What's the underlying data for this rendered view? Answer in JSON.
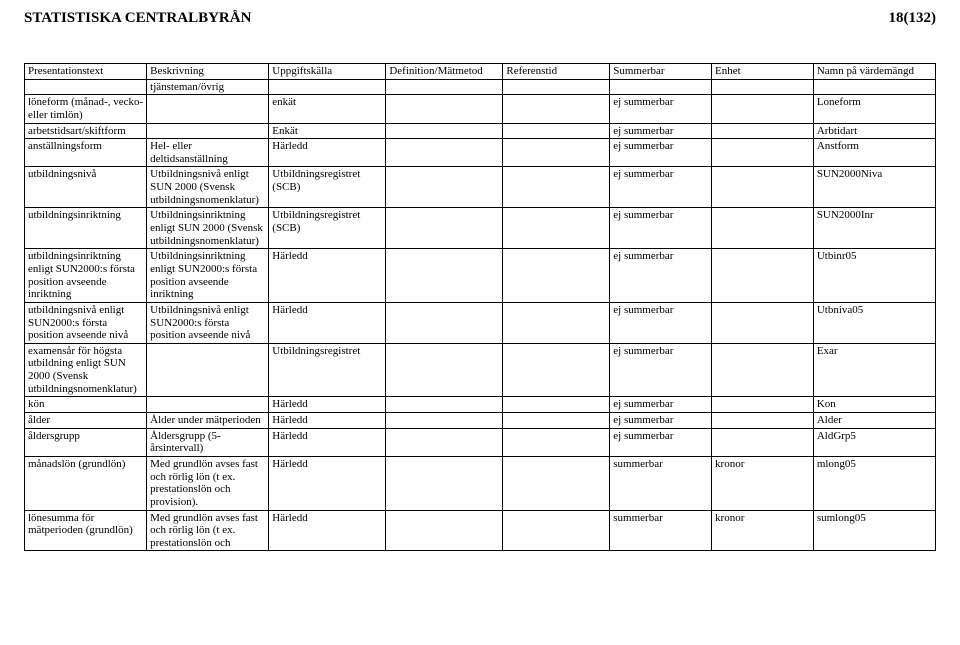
{
  "header": {
    "org": "STATISTISKA CENTRALBYRÅN",
    "page_no": "18(132)"
  },
  "table": {
    "columns": [
      "Presentationstext",
      "Beskrivning",
      "Uppgiftskälla",
      "Definition/Mätmetod",
      "Referenstid",
      "Summerbar",
      "Enhet",
      "Namn på värdemängd"
    ],
    "subhead": {
      "c1": "tjänsteman/övrig"
    },
    "rows": [
      {
        "c0": "löneform (månad-, vecko- eller timlön)",
        "c1": "",
        "c2": "enkät",
        "c3": "",
        "c4": "",
        "c5": "ej summerbar",
        "c6": "",
        "c7": "Loneform"
      },
      {
        "c0": "arbetstidsart/skiftform",
        "c1": "",
        "c2": "Enkät",
        "c3": "",
        "c4": "",
        "c5": "ej summerbar",
        "c6": "",
        "c7": "Arbtidart"
      },
      {
        "c0": "anställningsform",
        "c1": "Hel- eller deltidsanställning",
        "c2": "Härledd",
        "c3": "",
        "c4": "",
        "c5": "ej summerbar",
        "c6": "",
        "c7": "Anstform"
      },
      {
        "c0": "utbildningsnivå",
        "c1": "Utbildningsnivå enligt SUN 2000 (Svensk utbildningsnomenklatur)",
        "c2": "Utbildningsregistret (SCB)",
        "c3": "",
        "c4": "",
        "c5": "ej summerbar",
        "c6": "",
        "c7": "SUN2000Niva"
      },
      {
        "c0": "utbildningsinriktning",
        "c1": "Utbildningsinriktning enligt SUN 2000 (Svensk utbildningsnomenklatur)",
        "c2": "Utbildningsregistret (SCB)",
        "c3": "",
        "c4": "",
        "c5": "ej summerbar",
        "c6": "",
        "c7": "SUN2000Inr"
      },
      {
        "c0": "utbildningsinriktning enligt SUN2000:s första position avseende inriktning",
        "c1": "Utbildningsinriktning enligt SUN2000:s första position avseende inriktning",
        "c2": "Härledd",
        "c3": "",
        "c4": "",
        "c5": "ej summerbar",
        "c6": "",
        "c7": "Utbinr05"
      },
      {
        "c0": "utbildningsnivå enligt SUN2000:s första position avseende nivå",
        "c1": "Utbildningsnivå enligt SUN2000:s första position avseende nivå",
        "c2": "Härledd",
        "c3": "",
        "c4": "",
        "c5": "ej summerbar",
        "c6": "",
        "c7": "Utbniva05"
      },
      {
        "c0": "examensår för högsta utbildning enligt SUN 2000 (Svensk utbildningsnomenklatur)",
        "c1": "",
        "c2": "Utbildningsregistret",
        "c3": "",
        "c4": "",
        "c5": "ej summerbar",
        "c6": "",
        "c7": "Exar"
      },
      {
        "c0": "kön",
        "c1": "",
        "c2": "Härledd",
        "c3": "",
        "c4": "",
        "c5": "ej summerbar",
        "c6": "",
        "c7": "Kon"
      },
      {
        "c0": "ålder",
        "c1": "Ålder under mätperioden",
        "c2": "Härledd",
        "c3": "",
        "c4": "",
        "c5": "ej summerbar",
        "c6": "",
        "c7": "Alder"
      },
      {
        "c0": "åldersgrupp",
        "c1": "Åldersgrupp (5-årsintervall)",
        "c2": "Härledd",
        "c3": "",
        "c4": "",
        "c5": "ej summerbar",
        "c6": "",
        "c7": "AldGrp5"
      },
      {
        "c0": "månadslön (grundlön)",
        "c1": "Med grundlön avses fast och rörlig lön (t ex. prestationslön och provision).",
        "c2": "Härledd",
        "c3": "",
        "c4": "",
        "c5": "summerbar",
        "c6": "kronor",
        "c7": "mlong05"
      },
      {
        "c0": "lönesumma för mätperioden (grundlön)",
        "c1": "Med grundlön avses fast och rörlig lön (t ex. prestationslön och",
        "c2": "Härledd",
        "c3": "",
        "c4": "",
        "c5": "summerbar",
        "c6": "kronor",
        "c7": "sumlong05"
      }
    ]
  }
}
